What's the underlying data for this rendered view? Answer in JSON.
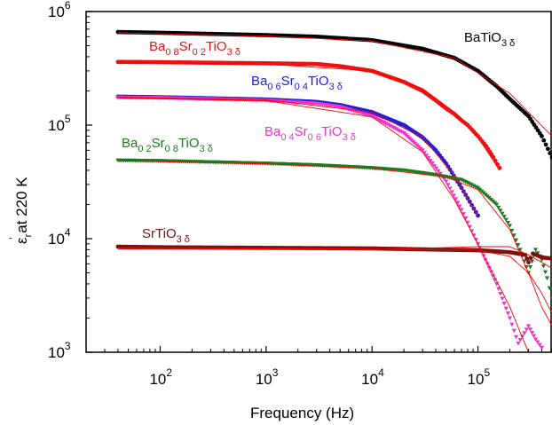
{
  "chart_data": {
    "type": "scatter",
    "title": "",
    "x_scale": "log",
    "y_scale": "log",
    "xlim": [
      20,
      500000
    ],
    "ylim": [
      1000,
      1000000
    ],
    "xlabel": "Frequency (Hz)",
    "ylabel": {
      "symbol": "ε",
      "superscript": "'",
      "subscript": "r",
      "text": " at 220 K"
    },
    "x_ticks": [
      {
        "value": 100,
        "base": "10",
        "exp": "2"
      },
      {
        "value": 1000,
        "base": "10",
        "exp": "3"
      },
      {
        "value": 10000,
        "base": "10",
        "exp": "4"
      },
      {
        "value": 100000,
        "base": "10",
        "exp": "5"
      }
    ],
    "y_ticks": [
      {
        "value": 1000,
        "base": "10",
        "exp": "3"
      },
      {
        "value": 10000,
        "base": "10",
        "exp": "4"
      },
      {
        "value": 100000,
        "base": "10",
        "exp": "5"
      },
      {
        "value": 1000000,
        "base": "10",
        "exp": "6"
      }
    ],
    "grid": false,
    "fit_color": "#ff0000",
    "series": [
      {
        "id": "batio3",
        "color": "#000000",
        "marker": "dot",
        "label": [
          {
            "t": "BaTiO"
          },
          {
            "t": "3 δ",
            "sub": true
          }
        ],
        "points": [
          [
            40,
            660000
          ],
          [
            100,
            650000
          ],
          [
            1000,
            620000
          ],
          [
            3000,
            600000
          ],
          [
            10000,
            560000
          ],
          [
            30000,
            470000
          ],
          [
            60000,
            390000
          ],
          [
            100000,
            300000
          ],
          [
            150000,
            220000
          ],
          [
            200000,
            170000
          ],
          [
            300000,
            120000
          ],
          [
            400000,
            80000
          ],
          [
            500000,
            52000
          ]
        ]
      },
      {
        "id": "ba08",
        "color": "#ee1111",
        "marker": "dot",
        "label": [
          {
            "t": "Ba"
          },
          {
            "t": "0 8",
            "sub": true
          },
          {
            "t": "Sr"
          },
          {
            "t": "0 2",
            "sub": true
          },
          {
            "t": "TiO"
          },
          {
            "t": "3 δ",
            "sub": true
          }
        ],
        "points": [
          [
            40,
            360000
          ],
          [
            100,
            358000
          ],
          [
            1000,
            350000
          ],
          [
            3000,
            345000
          ],
          [
            5000,
            330000
          ],
          [
            10000,
            300000
          ],
          [
            20000,
            240000
          ],
          [
            30000,
            200000
          ],
          [
            40000,
            165000
          ],
          [
            50000,
            140000
          ],
          [
            60000,
            125000
          ],
          [
            70000,
            110000
          ],
          [
            80000,
            100000
          ],
          [
            100000,
            80000
          ],
          [
            120000,
            65000
          ],
          [
            140000,
            52000
          ],
          [
            160000,
            42000
          ]
        ]
      },
      {
        "id": "ba06",
        "color": "#1f1fd6",
        "marker": "dot",
        "label": [
          {
            "t": "Ba"
          },
          {
            "t": "0 6",
            "sub": true
          },
          {
            "t": "Sr"
          },
          {
            "t": "0 4",
            "sub": true
          },
          {
            "t": "TiO"
          },
          {
            "t": "3 δ",
            "sub": true
          }
        ],
        "points": [
          [
            40,
            178000
          ],
          [
            100,
            176000
          ],
          [
            1000,
            168000
          ],
          [
            3000,
            160000
          ],
          [
            5000,
            150000
          ],
          [
            10000,
            130000
          ],
          [
            20000,
            100000
          ],
          [
            30000,
            78000
          ],
          [
            40000,
            60000
          ],
          [
            50000,
            46000
          ],
          [
            70000,
            28000
          ],
          [
            100000,
            16000
          ]
        ]
      },
      {
        "id": "ba04",
        "color": "#ee33cc",
        "marker": "triangle",
        "label": [
          {
            "t": "Ba"
          },
          {
            "t": "0 4",
            "sub": true
          },
          {
            "t": "Sr"
          },
          {
            "t": "0 6",
            "sub": true
          },
          {
            "t": "TiO"
          },
          {
            "t": "3 δ",
            "sub": true
          }
        ],
        "points": [
          [
            40,
            175000
          ],
          [
            100,
            174000
          ],
          [
            1000,
            165000
          ],
          [
            3000,
            155000
          ],
          [
            5000,
            145000
          ],
          [
            10000,
            120000
          ],
          [
            20000,
            85000
          ],
          [
            30000,
            60000
          ],
          [
            50000,
            32000
          ],
          [
            70000,
            18000
          ],
          [
            100000,
            9000
          ],
          [
            150000,
            4000
          ],
          [
            200000,
            2000
          ],
          [
            240000,
            1200
          ],
          [
            300000,
            1700
          ],
          [
            350000,
            1300
          ],
          [
            400000,
            1100
          ]
        ]
      },
      {
        "id": "ba02",
        "color": "#1e7a1e",
        "marker": "triangle",
        "label": [
          {
            "t": "Ba"
          },
          {
            "t": "0 2",
            "sub": true
          },
          {
            "t": "Sr"
          },
          {
            "t": "0 8",
            "sub": true
          },
          {
            "t": "TiO"
          },
          {
            "t": "3 δ",
            "sub": true
          }
        ],
        "points": [
          [
            40,
            49000
          ],
          [
            100,
            48500
          ],
          [
            1000,
            46000
          ],
          [
            3000,
            44500
          ],
          [
            10000,
            42000
          ],
          [
            20000,
            40000
          ],
          [
            40000,
            36500
          ],
          [
            70000,
            33000
          ],
          [
            100000,
            28000
          ],
          [
            150000,
            20000
          ],
          [
            200000,
            13000
          ],
          [
            250000,
            8000
          ],
          [
            300000,
            5000
          ],
          [
            350000,
            8000
          ],
          [
            400000,
            6500
          ],
          [
            450000,
            4500
          ],
          [
            500000,
            3000
          ]
        ]
      },
      {
        "id": "srtio3",
        "color": "#7a1212",
        "marker": "dot",
        "label": [
          {
            "t": "SrTiO"
          },
          {
            "t": "3 δ",
            "sub": true
          }
        ],
        "points": [
          [
            40,
            8500
          ],
          [
            100,
            8400
          ],
          [
            1000,
            8300
          ],
          [
            10000,
            8200
          ],
          [
            100000,
            7900
          ],
          [
            200000,
            7600
          ],
          [
            280000,
            7200
          ],
          [
            300000,
            6200
          ],
          [
            330000,
            7400
          ],
          [
            380000,
            7000
          ],
          [
            420000,
            6800
          ],
          [
            500000,
            6700
          ]
        ]
      }
    ],
    "fits": [
      {
        "id": "batio3-fit",
        "points": [
          [
            40,
            650000
          ],
          [
            1000,
            610000
          ],
          [
            10000,
            550000
          ],
          [
            60000,
            390000
          ],
          [
            200000,
            190000
          ],
          [
            500000,
            80000
          ]
        ]
      },
      {
        "id": "ba08-fit",
        "points": [
          [
            40,
            355000
          ],
          [
            1000,
            345000
          ],
          [
            10000,
            300000
          ],
          [
            30000,
            210000
          ],
          [
            60000,
            130000
          ],
          [
            100000,
            78000
          ],
          [
            160000,
            40000
          ]
        ]
      },
      {
        "id": "ba06-fit",
        "points": [
          [
            40,
            176000
          ],
          [
            1000,
            167000
          ],
          [
            10000,
            130000
          ],
          [
            30000,
            78000
          ],
          [
            60000,
            36000
          ],
          [
            100000,
            16000
          ]
        ]
      },
      {
        "id": "ba04-fit",
        "points": [
          [
            40,
            174000
          ],
          [
            1000,
            164000
          ],
          [
            10000,
            118000
          ],
          [
            30000,
            58000
          ],
          [
            60000,
            22000
          ],
          [
            100000,
            9000
          ],
          [
            200000,
            2500
          ],
          [
            300000,
            1000
          ]
        ]
      },
      {
        "id": "ba02-fit",
        "points": [
          [
            40,
            48500
          ],
          [
            1000,
            45500
          ],
          [
            10000,
            41500
          ],
          [
            50000,
            35000
          ],
          [
            100000,
            27000
          ],
          [
            200000,
            12000
          ],
          [
            300000,
            5000
          ],
          [
            400000,
            2500
          ],
          [
            500000,
            1700
          ]
        ]
      },
      {
        "id": "srtio3-fit-a",
        "points": [
          [
            40,
            8300
          ],
          [
            1000,
            8200
          ],
          [
            10000,
            8100
          ],
          [
            100000,
            7900
          ],
          [
            200000,
            7000
          ],
          [
            300000,
            5000
          ],
          [
            400000,
            3300
          ],
          [
            500000,
            2200
          ]
        ]
      },
      {
        "id": "srtio3-fit-b",
        "points": [
          [
            40,
            8100
          ],
          [
            1000,
            8100
          ],
          [
            10000,
            8000
          ],
          [
            100000,
            8500
          ],
          [
            200000,
            8500
          ],
          [
            300000,
            7200
          ],
          [
            500000,
            5500
          ]
        ]
      }
    ]
  }
}
